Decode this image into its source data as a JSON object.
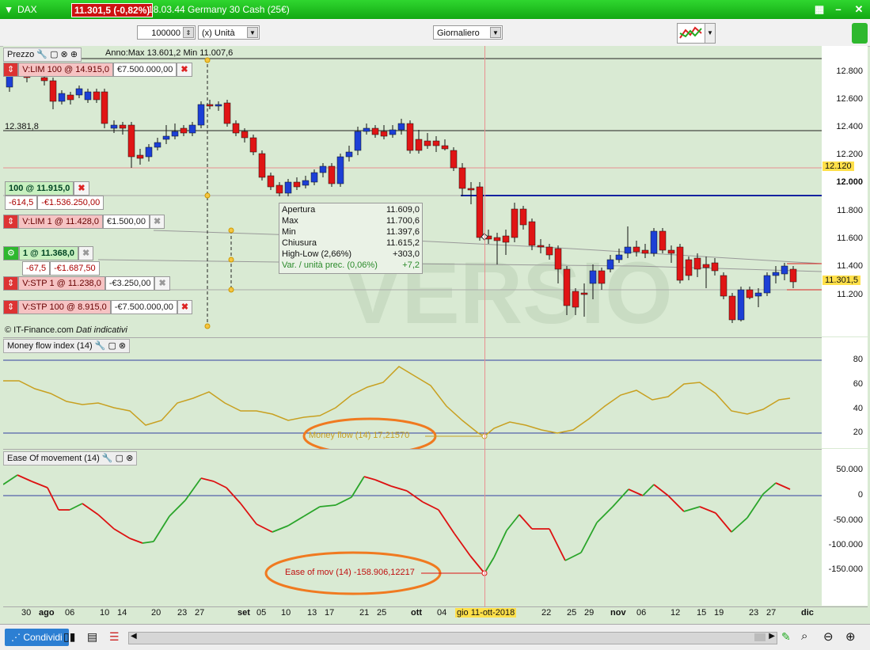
{
  "titlebar": {
    "symbol": "DAX",
    "price_badge": "11.301,5 (-0,82%)",
    "info": "18.03.44 Germany 30 Cash (25€)"
  },
  "toolbar": {
    "quantity": "100000",
    "unit": "(x) Unità",
    "period": "Giornaliero"
  },
  "price_panel": {
    "title": "Prezzo",
    "range": "Anno:Max 13.601,2 Min 11.007,6",
    "left_label": "12.381,8",
    "copyright": "© IT-Finance.com",
    "indicative": "Dati indicativi",
    "last_price": "11.301,5",
    "cursor_price": "12.120",
    "yaxis": [
      "12.800",
      "12.600",
      "12.400",
      "12.200",
      "12.000",
      "11.800",
      "11.600",
      "11.400",
      "11.200"
    ]
  },
  "orders": [
    {
      "label": "V:LIM  100 @ 14.915,0",
      "value": "€7.500.000,00"
    },
    {
      "label": "100 @ 11.915,0",
      "pnl": "-614,5",
      "value": "-€1.536.250,00"
    },
    {
      "label": "V:LIM  1 @ 11.428,0",
      "value": "€1.500,00"
    },
    {
      "label": "1 @ 11.368,0",
      "pnl": "-67,5",
      "value": "-€1.687,50"
    },
    {
      "label": "V:STP  1 @ 11.238,0",
      "value": "-€3.250,00"
    },
    {
      "label": "V:STP  100 @ 8.915,0",
      "value": "-€7.500.000,00"
    }
  ],
  "infobox": [
    {
      "k": "Apertura",
      "v": "11.609,0"
    },
    {
      "k": "Max",
      "v": "11.700,6"
    },
    {
      "k": "Min",
      "v": "11.397,6"
    },
    {
      "k": "Chiusura",
      "v": "11.615,2"
    },
    {
      "k": "High-Low (2,66%)",
      "v": "+303,0"
    },
    {
      "k": "Var. / unità prec. (0,06%)",
      "v": "+7,2"
    }
  ],
  "mfi_panel": {
    "title": "Money flow index (14)",
    "yaxis": [
      "80",
      "60",
      "40",
      "20"
    ],
    "readout": "Money flow (14)    17,21570"
  },
  "eom_panel": {
    "title": "Ease Of movement (14)",
    "yaxis": [
      "50.000",
      "0",
      "-50.000",
      "-100.000",
      "-150.000"
    ],
    "readout": "Ease of mov (14)    -158.906,12217"
  },
  "xaxis": [
    {
      "t": "30",
      "x": 33
    },
    {
      "t": "ago",
      "x": 55
    },
    {
      "t": "06",
      "x": 88
    },
    {
      "t": "10",
      "x": 132
    },
    {
      "t": "14",
      "x": 154
    },
    {
      "t": "20",
      "x": 197
    },
    {
      "t": "23",
      "x": 230
    },
    {
      "t": "27",
      "x": 252
    },
    {
      "t": "set",
      "x": 306
    },
    {
      "t": "05",
      "x": 330
    },
    {
      "t": "10",
      "x": 361
    },
    {
      "t": "13",
      "x": 394
    },
    {
      "t": "17",
      "x": 416
    },
    {
      "t": "21",
      "x": 460
    },
    {
      "t": "25",
      "x": 482
    },
    {
      "t": "ott",
      "x": 525
    },
    {
      "t": "04",
      "x": 558
    },
    {
      "t": "22",
      "x": 690
    },
    {
      "t": "25",
      "x": 722
    },
    {
      "t": "29",
      "x": 744
    },
    {
      "t": "nov",
      "x": 777
    },
    {
      "t": "06",
      "x": 810
    },
    {
      "t": "12",
      "x": 853
    },
    {
      "t": "15",
      "x": 886
    },
    {
      "t": "19",
      "x": 908
    },
    {
      "t": "23",
      "x": 952
    },
    {
      "t": "27",
      "x": 974
    },
    {
      "t": "dic",
      "x": 1018
    }
  ],
  "cursor_date": "gio 11-ott-2018",
  "bottombar": {
    "share": "Condividi"
  },
  "watermark": "VERSIO",
  "colors": {
    "up": "#1c3fd6",
    "down": "#e01515",
    "mfi": "#c8a020",
    "eom_up": "#2aa52a",
    "eom_down": "#dd1111",
    "titlebar": "#17b417"
  }
}
